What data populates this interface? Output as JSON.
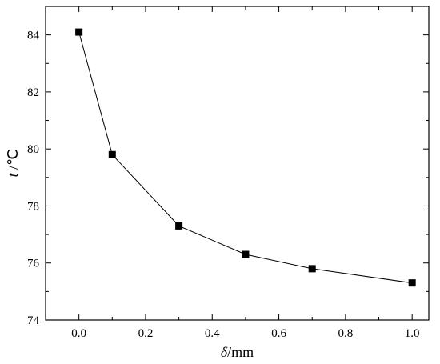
{
  "chart_data": {
    "type": "line",
    "xlabel_italic": "δ",
    "xlabel_rest": "/mm",
    "ylabel_italic": "t",
    "ylabel_rest": " /℃",
    "xlim": [
      -0.1,
      1.05
    ],
    "ylim": [
      74,
      85
    ],
    "xticks": [
      0.0,
      0.2,
      0.4,
      0.6,
      0.8,
      1.0
    ],
    "xtick_labels": [
      "0.0",
      "0.2",
      "0.4",
      "0.6",
      "0.8",
      "1.0"
    ],
    "yticks": [
      74,
      76,
      78,
      80,
      82,
      84
    ],
    "ytick_labels": [
      "74",
      "76",
      "78",
      "80",
      "82",
      "84"
    ],
    "grid": false,
    "series": [
      {
        "marker": "square",
        "color": "#000000",
        "x": [
          0.0,
          0.1,
          0.3,
          0.5,
          0.7,
          1.0
        ],
        "y": [
          84.1,
          79.8,
          77.3,
          76.3,
          75.8,
          75.3
        ]
      }
    ]
  }
}
